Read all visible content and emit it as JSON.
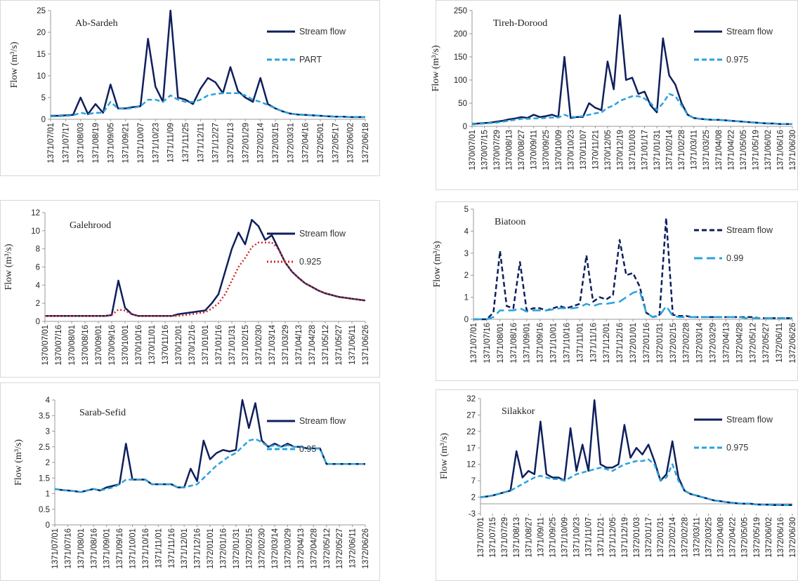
{
  "chart_data": [
    {
      "type": "line",
      "title": "Ab-Sardeh",
      "ylabel": "Flow (m³/s)",
      "legend": "upper right",
      "ylim": [
        0,
        25
      ],
      "yticks": [
        0,
        5,
        10,
        15,
        20,
        25
      ],
      "categories": [
        "1371/07/01",
        null,
        "1371/07/17",
        null,
        "1371/08/03",
        null,
        "1371/08/19",
        null,
        "1371/09/05",
        null,
        "1371/09/21",
        null,
        "1371/10/07",
        null,
        "1371/10/23",
        null,
        "1371/11/09",
        null,
        "1371/11/25",
        null,
        "1371/12/11",
        null,
        "1371/12/27",
        null,
        "1372/01/13",
        null,
        "1372/01/29",
        null,
        "1372/02/14",
        null,
        "1372/03/15",
        null,
        "1372/03/31",
        null,
        "1372/04/16",
        null,
        "1372/05/01",
        null,
        "1372/05/17",
        null,
        "1372/06/02",
        null,
        "1372/06/18"
      ],
      "series": [
        {
          "name": "Stream flow",
          "color": "#0f1f5c",
          "dash": "solid",
          "values": [
            0.8,
            0.8,
            0.9,
            1,
            5,
            1.2,
            3.5,
            1.5,
            8,
            2.5,
            2.5,
            2.8,
            3,
            18.5,
            7.5,
            4,
            25,
            5,
            4.5,
            3.5,
            7,
            9.5,
            8.5,
            6,
            12,
            6.5,
            5,
            4,
            9.5,
            3.5,
            2.5,
            1.8,
            1.3,
            1.1,
            1,
            0.9,
            0.8,
            0.7,
            0.6,
            0.6,
            0.5,
            0.5,
            0.5
          ]
        },
        {
          "name": "PART",
          "color": "#29a3dc",
          "dash": "dashed",
          "values": [
            0.7,
            0.7,
            0.8,
            0.9,
            1.5,
            1.2,
            1.5,
            1.5,
            4,
            2.5,
            2.4,
            2.6,
            3,
            4.5,
            4.5,
            4,
            5.5,
            4.5,
            4,
            4,
            4.5,
            5.5,
            5.8,
            6,
            6,
            6,
            5.5,
            4.5,
            4,
            3.3,
            2.5,
            1.8,
            1.3,
            1.1,
            1,
            0.9,
            0.8,
            0.7,
            0.6,
            0.6,
            0.5,
            0.5,
            0.5
          ]
        }
      ]
    },
    {
      "type": "line",
      "title": "Tireh-Dorood",
      "ylabel": "Flow (m³/s)",
      "legend": "upper right",
      "ylim": [
        0,
        250
      ],
      "yticks": [
        0,
        50,
        100,
        150,
        200,
        250
      ],
      "categories": [
        "1370/07/01",
        null,
        "1370/07/15",
        null,
        "1370/07/29",
        null,
        "1370/08/13",
        null,
        "1370/08/27",
        null,
        "1370/09/11",
        null,
        "1370/09/25",
        null,
        "1370/10/09",
        null,
        "1370/10/23",
        null,
        "1370/11/07",
        null,
        "1370/11/21",
        null,
        "1370/12/05",
        null,
        "1370/12/19",
        null,
        "1371/01/03",
        null,
        "1371/01/17",
        null,
        "1371/01/31",
        null,
        "1371/02/14",
        null,
        "1371/02/28",
        null,
        "1371/03/11",
        null,
        "1371/03/25",
        null,
        "1371/04/08",
        null,
        "1371/04/22",
        null,
        "1371/05/05",
        null,
        "1371/05/19",
        null,
        "1371/06/02",
        null,
        "1371/06/16",
        null,
        "1371/06/30"
      ],
      "series": [
        {
          "name": "Stream flow",
          "color": "#0f1f5c",
          "dash": "solid",
          "values": [
            5,
            6,
            7,
            8,
            10,
            12,
            15,
            17,
            20,
            18,
            25,
            20,
            22,
            25,
            20,
            150,
            18,
            20,
            20,
            50,
            40,
            35,
            140,
            80,
            240,
            100,
            105,
            70,
            75,
            45,
            30,
            190,
            110,
            90,
            50,
            25,
            18,
            16,
            15,
            14,
            14,
            13,
            12,
            11,
            10,
            9,
            8,
            7,
            6,
            6,
            5,
            5,
            5
          ]
        },
        {
          "name": "0.975",
          "color": "#29a3dc",
          "dash": "dashed",
          "values": [
            4,
            5,
            6,
            7,
            8,
            10,
            12,
            14,
            16,
            16,
            17,
            17,
            18,
            19,
            19,
            25,
            20,
            20,
            22,
            25,
            28,
            30,
            40,
            45,
            55,
            60,
            65,
            65,
            60,
            50,
            35,
            50,
            70,
            65,
            45,
            25,
            18,
            16,
            15,
            14,
            14,
            13,
            12,
            11,
            10,
            9,
            8,
            7,
            6,
            6,
            5,
            5,
            5
          ]
        }
      ]
    },
    {
      "type": "line",
      "title": "Galehrood",
      "ylabel": "Flow (m³/s)",
      "legend": "upper right",
      "ylim": [
        0,
        12
      ],
      "yticks": [
        0,
        2,
        4,
        6,
        8,
        10,
        12
      ],
      "categories": [
        "1370/07/01",
        null,
        "1370/07/16",
        null,
        "1370/08/01",
        null,
        "1370/08/16",
        null,
        "1370/09/01",
        null,
        "1370/09/16",
        null,
        "1370/10/01",
        null,
        "1370/10/16",
        null,
        "1370/11/01",
        null,
        "1370/11/16",
        null,
        "1370/12/01",
        null,
        "1370/12/16",
        null,
        "1371/01/01",
        null,
        "1371/01/16",
        null,
        "1371/01/31",
        null,
        "1371/02/15",
        null,
        "1371/02/30",
        null,
        "1371/03/14",
        null,
        "1371/03/29",
        null,
        "1371/04/13",
        null,
        "1371/04/28",
        null,
        "1371/05/12",
        null,
        "1371/05/27",
        null,
        "1371/06/11",
        null,
        "1371/06/26"
      ],
      "series": [
        {
          "name": "Stream flow",
          "color": "#0f1f5c",
          "dash": "solid",
          "values": [
            0.6,
            0.6,
            0.6,
            0.6,
            0.6,
            0.6,
            0.6,
            0.6,
            0.6,
            0.6,
            0.7,
            4.5,
            1.5,
            0.8,
            0.6,
            0.6,
            0.6,
            0.6,
            0.6,
            0.6,
            0.8,
            0.9,
            1,
            1.1,
            1.2,
            2,
            3,
            5.5,
            8,
            9.8,
            8.5,
            11.2,
            10.5,
            9,
            9.5,
            8,
            6.5,
            5.5,
            4.8,
            4.2,
            3.8,
            3.4,
            3.1,
            2.9,
            2.7,
            2.6,
            2.5,
            2.4,
            2.3
          ]
        },
        {
          "name": "0.925",
          "color": "#d02a2a",
          "dash": "dotted",
          "values": [
            0.6,
            0.6,
            0.6,
            0.6,
            0.6,
            0.6,
            0.6,
            0.6,
            0.6,
            0.6,
            0.7,
            1.3,
            1.2,
            0.8,
            0.6,
            0.6,
            0.6,
            0.6,
            0.6,
            0.6,
            0.6,
            0.7,
            0.8,
            0.9,
            1,
            1.4,
            2,
            3,
            4.5,
            6,
            7,
            8.2,
            8.7,
            8.7,
            8.7,
            8,
            6.5,
            5.5,
            4.8,
            4.2,
            3.8,
            3.4,
            3.1,
            2.9,
            2.7,
            2.6,
            2.5,
            2.4,
            2.3
          ]
        }
      ]
    },
    {
      "type": "line",
      "title": "Biatoon",
      "ylabel": "Flow (m³/s)",
      "legend": "upper right",
      "ylim": [
        0,
        5
      ],
      "yticks": [
        0,
        1,
        2,
        3,
        4,
        5
      ],
      "categories": [
        "1371/07/01",
        null,
        "1371/07/16",
        null,
        "1371/08/01",
        null,
        "1371/08/16",
        null,
        "1371/09/01",
        null,
        "1371/09/16",
        null,
        "1371/10/01",
        null,
        "1371/10/16",
        null,
        "1371/11/01",
        null,
        "1371/11/16",
        null,
        "1371/12/01",
        null,
        "1371/12/16",
        null,
        "1372/01/01",
        null,
        "1372/01/16",
        null,
        "1372/01/31",
        null,
        "1372/02/15",
        null,
        "1372/02/28",
        null,
        "1372/03/14",
        null,
        "1372/03/29",
        null,
        "1372/04/13",
        null,
        "1372/04/28",
        null,
        "1372/05/12",
        null,
        "1372/05/27",
        null,
        "1372/06/11",
        null,
        "1372/06/26"
      ],
      "series": [
        {
          "name": "Stream flow",
          "color": "#0f1f5c",
          "dash": "dashed",
          "values": [
            0,
            0,
            0,
            0.3,
            3.1,
            0.6,
            0.5,
            2.6,
            0.4,
            0.5,
            0.5,
            0.4,
            0.5,
            0.6,
            0.5,
            0.6,
            0.7,
            2.9,
            0.8,
            1,
            0.9,
            1.1,
            3.6,
            2,
            2.1,
            1.5,
            0.3,
            0.1,
            0.2,
            4.6,
            0.2,
            0.15,
            0.15,
            0.1,
            0.1,
            0.1,
            0.1,
            0.1,
            0.1,
            0.1,
            0.1,
            0.1,
            0.1,
            0.05,
            0.05,
            0.05,
            0.05,
            0.05,
            0.05
          ]
        },
        {
          "name": "0.99",
          "color": "#29a3dc",
          "dash": "longdash",
          "values": [
            0,
            0,
            0,
            0.1,
            0.4,
            0.4,
            0.4,
            0.5,
            0.35,
            0.4,
            0.4,
            0.4,
            0.45,
            0.5,
            0.5,
            0.5,
            0.55,
            0.7,
            0.6,
            0.7,
            0.7,
            0.75,
            0.8,
            1,
            1.2,
            1.3,
            0.3,
            0.1,
            0.15,
            0.6,
            0.15,
            0.1,
            0.1,
            0.1,
            0.1,
            0.1,
            0.1,
            0.1,
            0.1,
            0.1,
            0.1,
            0.05,
            0.05,
            0.05,
            0.05,
            0.05,
            0.05,
            0.05,
            0.05
          ]
        }
      ]
    },
    {
      "type": "line",
      "title": "Sarab-Sefid",
      "ylabel": "Flow (m³/s)",
      "legend": "upper right",
      "ylim": [
        0,
        4
      ],
      "yticks": [
        0,
        0.5,
        1,
        1.5,
        2,
        2.5,
        3,
        3.5,
        4
      ],
      "categories": [
        "1371/07/01",
        null,
        "1371/07/16",
        null,
        "1371/08/01",
        null,
        "1371/08/16",
        null,
        "1371/09/01",
        null,
        "1371/09/16",
        null,
        "1371/10/01",
        null,
        "1371/10/16",
        null,
        "1371/11/01",
        null,
        "1371/11/16",
        null,
        "1371/12/01",
        null,
        "1371/12/16",
        null,
        "1372/01/01",
        null,
        "1372/01/16",
        null,
        "1372/01/31",
        null,
        "1372/02/15",
        null,
        "1372/02/30",
        null,
        "1372/03/14",
        null,
        "1372/03/29",
        null,
        "1372/04/13",
        null,
        "1372/04/28",
        null,
        "1372/05/12",
        null,
        "1372/05/27",
        null,
        "1372/06/11",
        null,
        "1372/06/26"
      ],
      "series": [
        {
          "name": "Stream flow",
          "color": "#0f1f5c",
          "dash": "solid",
          "values": [
            1.15,
            1.12,
            1.1,
            1.08,
            1.05,
            1.1,
            1.15,
            1.1,
            1.2,
            1.25,
            1.3,
            2.6,
            1.45,
            1.45,
            1.45,
            1.3,
            1.3,
            1.3,
            1.3,
            1.2,
            1.2,
            1.8,
            1.4,
            2.7,
            2.1,
            2.3,
            2.4,
            2.35,
            2.4,
            4,
            3.1,
            3.9,
            2.7,
            2.5,
            2.6,
            2.5,
            2.6,
            2.5,
            2.5,
            2.45,
            2.45,
            2.45,
            1.95,
            1.95,
            1.95,
            1.95,
            1.95,
            1.95,
            1.95
          ]
        },
        {
          "name": "0.95",
          "color": "#29a3dc",
          "dash": "dashed",
          "values": [
            1.15,
            1.12,
            1.1,
            1.08,
            1.05,
            1.1,
            1.15,
            1.1,
            1.15,
            1.2,
            1.3,
            1.45,
            1.45,
            1.45,
            1.45,
            1.3,
            1.3,
            1.3,
            1.3,
            1.2,
            1.2,
            1.25,
            1.3,
            1.5,
            1.7,
            1.9,
            2.05,
            2.2,
            2.3,
            2.5,
            2.7,
            2.75,
            2.65,
            2.5,
            2.55,
            2.5,
            2.55,
            2.5,
            2.5,
            2.45,
            2.45,
            2.45,
            1.95,
            1.95,
            1.95,
            1.95,
            1.95,
            1.95,
            1.95
          ]
        }
      ]
    },
    {
      "type": "line",
      "title": "Silakkor",
      "ylabel": "Flow (m³/s)",
      "legend": "upper right",
      "ylim": [
        -3,
        32
      ],
      "yticks": [
        -3,
        2,
        7,
        12,
        17,
        22,
        27,
        32
      ],
      "categories": [
        "1371/07/01",
        null,
        "1371/07/15",
        null,
        "1371/07/29",
        null,
        "1371/08/13",
        null,
        "1371/08/27",
        null,
        "1371/09/11",
        null,
        "1371/09/25",
        null,
        "1371/10/09",
        null,
        "1371/10/23",
        null,
        "1371/11/07",
        null,
        "1371/11/21",
        null,
        "1371/12/05",
        null,
        "1371/12/19",
        null,
        "1372/01/03",
        null,
        "1372/01/17",
        null,
        "1372/01/31",
        null,
        "1372/02/14",
        null,
        "1372/02/28",
        null,
        "1372/03/11",
        null,
        "1372/03/25",
        null,
        "1372/04/08",
        null,
        "1372/04/22",
        null,
        "1372/05/05",
        null,
        "1372/05/19",
        null,
        "1372/06/02",
        null,
        "1372/06/16",
        null,
        "1372/06/30"
      ],
      "series": [
        {
          "name": "Stream flow",
          "color": "#0f1f5c",
          "dash": "solid",
          "values": [
            2,
            2.2,
            2.5,
            3,
            3.5,
            4,
            16,
            8,
            10,
            9,
            25,
            9,
            8,
            8,
            7,
            23,
            10,
            18,
            10,
            31.5,
            12,
            11,
            11,
            12,
            24,
            14,
            17,
            15,
            18,
            13,
            7,
            9,
            19,
            8,
            4,
            3,
            2.5,
            2,
            1.5,
            1,
            0.8,
            0.5,
            0.3,
            0.1,
            0,
            0,
            -0.2,
            -0.3,
            -0.3,
            -0.4,
            -0.4,
            -0.4,
            -0.4
          ]
        },
        {
          "name": "0.975",
          "color": "#29a3dc",
          "dash": "dashed",
          "values": [
            2,
            2.2,
            2.5,
            3,
            3.5,
            4,
            5,
            6,
            7,
            8,
            8.5,
            8,
            7.5,
            7.5,
            7,
            8,
            9,
            9.5,
            10,
            10.5,
            11,
            10.5,
            10,
            11,
            12,
            12.5,
            13,
            13,
            13.5,
            12,
            7,
            8,
            12,
            7,
            4,
            3,
            2.5,
            2,
            1.5,
            1,
            0.8,
            0.5,
            0.3,
            0.1,
            0,
            0,
            -0.2,
            -0.3,
            -0.3,
            -0.4,
            -0.4,
            -0.4,
            -0.4
          ]
        }
      ]
    }
  ]
}
